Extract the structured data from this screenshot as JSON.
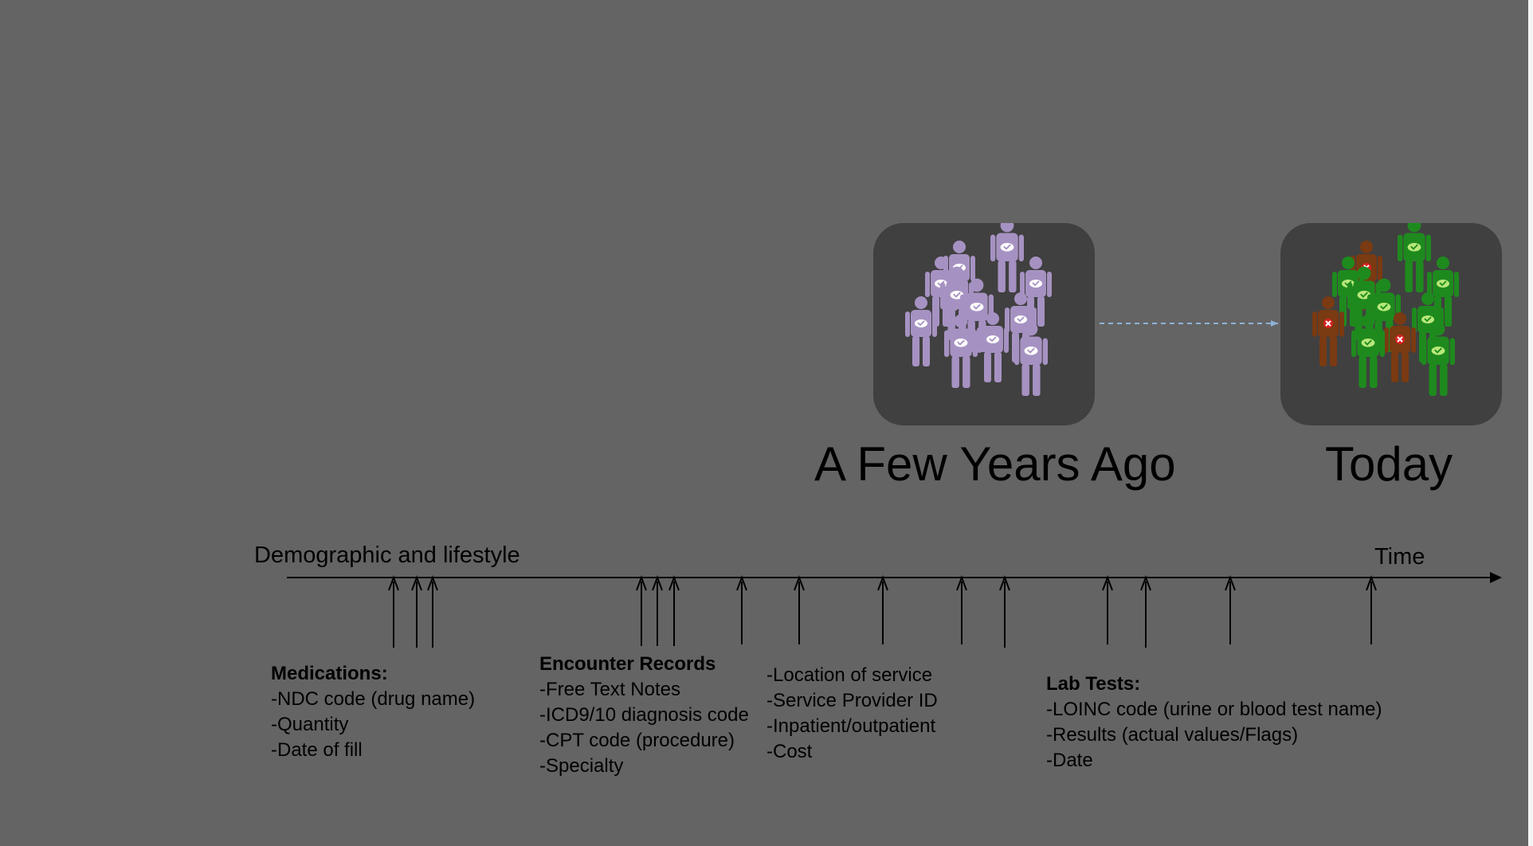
{
  "titles": {
    "past": "A Few Years Ago",
    "today": "Today"
  },
  "timeline": {
    "start_label": "Demographic and lifestyle",
    "end_label": "Time"
  },
  "groups": {
    "medications": {
      "heading": "Medications:",
      "items": [
        "-NDC code (drug name)",
        "-Quantity",
        "-Date of fill"
      ]
    },
    "encounters": {
      "heading": "Encounter Records",
      "items": [
        "-Free Text Notes",
        "-ICD9/10 diagnosis code",
        "-CPT code (procedure)",
        "-Specialty"
      ]
    },
    "service": {
      "items": [
        "-Location of service",
        "-Service Provider ID",
        "-Inpatient/outpatient",
        "-Cost"
      ]
    },
    "lab_tests": {
      "heading": "Lab Tests:",
      "items": [
        "-LOINC code (urine or blood test name)",
        "-Results (actual values/Flags)",
        "-Date"
      ]
    }
  },
  "crowds": {
    "past_color": "#a692c2",
    "healthy_color": "#1e8a1e",
    "sick_color": "#7a3a12",
    "healthy_icon": "check-mark-icon",
    "sick_icon": "x-mark-icon"
  },
  "colors": {
    "background": "#646464",
    "box": "#404040",
    "arrow_dashed": "#8fb2d8"
  }
}
